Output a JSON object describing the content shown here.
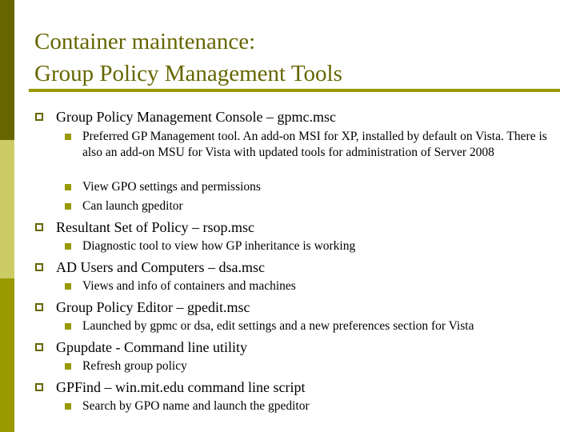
{
  "title": {
    "line1": "Container maintenance:",
    "line2": "Group Policy Management Tools"
  },
  "colors": {
    "bar_top": "#666600",
    "bar_mid": "#CCCC66",
    "bar_bottom": "#999900",
    "title": "#666600",
    "rule": "#999900",
    "bullet": "#999900"
  },
  "bullets": [
    {
      "text": "Group Policy Management Console – gpmc.msc",
      "sub": [
        "Preferred GP Management tool. An add-on MSI for XP, installed by default on Vista. There is also an add-on MSU for Vista with updated tools for administration of Server 2008",
        "View GPO settings and permissions",
        "Can launch gpeditor"
      ]
    },
    {
      "text": "Resultant Set of Policy – rsop.msc",
      "sub": [
        "Diagnostic tool to view how GP inheritance is working"
      ]
    },
    {
      "text": "AD Users and Computers – dsa.msc",
      "sub": [
        "Views  and info of containers and machines"
      ]
    },
    {
      "text": "Group Policy Editor – gpedit.msc",
      "sub": [
        "Launched by gpmc or dsa, edit settings and a new preferences section for Vista"
      ]
    },
    {
      "text": "Gpupdate - Command line utility",
      "sub": [
        "Refresh group policy"
      ]
    },
    {
      "text": "GPFind – win.mit.edu command line script",
      "sub": [
        "Search by GPO name and launch the gpeditor"
      ]
    }
  ]
}
